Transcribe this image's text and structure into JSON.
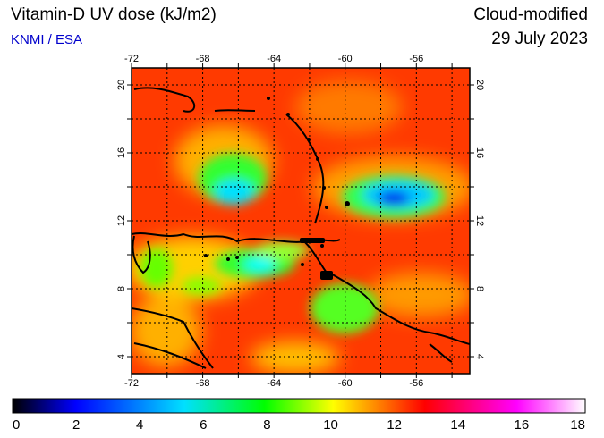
{
  "header": {
    "title": "Vitamin-D UV dose (kJ/m2)",
    "source": "KNMI / ESA",
    "mode": "Cloud-modified",
    "date": "29 July 2023"
  },
  "map": {
    "lon_range": [
      -72,
      -53
    ],
    "lat_range": [
      3,
      21
    ],
    "lon_ticks": [
      -72,
      -68,
      -64,
      -60,
      -56
    ],
    "lat_ticks": [
      4,
      8,
      12,
      16,
      20
    ],
    "lon_grid": [
      -72,
      -70,
      -68,
      -66,
      -64,
      -62,
      -60,
      -58,
      -56,
      -54
    ],
    "lat_grid": [
      4,
      6,
      8,
      10,
      12,
      14,
      16,
      18,
      20
    ],
    "lon_tick_labels": [
      "-72",
      "-68",
      "-64",
      "-60",
      "-56"
    ],
    "lat_tick_labels": [
      "4",
      "8",
      "12",
      "16",
      "20"
    ]
  },
  "colorbar": {
    "range": [
      0,
      18
    ],
    "ticks": [
      0,
      2,
      4,
      6,
      8,
      10,
      12,
      14,
      16,
      18
    ],
    "tick_labels": [
      "0",
      "2",
      "4",
      "6",
      "8",
      "10",
      "12",
      "14",
      "16",
      "18"
    ],
    "colors": [
      "#000000",
      "#0000ff",
      "#00e0ff",
      "#00ff00",
      "#ffff00",
      "#ff0000",
      "#ff00ff",
      "#ffffff"
    ]
  }
}
